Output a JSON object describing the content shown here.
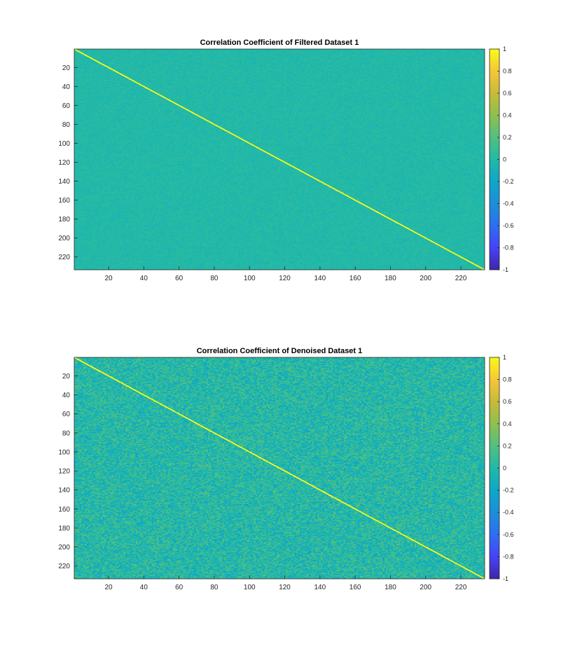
{
  "chart_data": [
    {
      "type": "heatmap",
      "title": "Correlation Coefficient of Filtered Dataset 1",
      "matrix_size": 233,
      "background_value": 0.0,
      "diagonal_value": 1,
      "noise_amplitude": 0.06,
      "xlim": [
        0.5,
        233.5
      ],
      "ylim": [
        0.5,
        233.5
      ],
      "y_reversed": true,
      "x_ticks": [
        20,
        40,
        60,
        80,
        100,
        120,
        140,
        160,
        180,
        200,
        220
      ],
      "y_ticks": [
        20,
        40,
        60,
        80,
        100,
        120,
        140,
        160,
        180,
        200,
        220
      ],
      "colorbar": {
        "min": -1,
        "max": 1,
        "ticks": [
          -1,
          -0.8,
          -0.6,
          -0.4,
          -0.2,
          0,
          0.2,
          0.4,
          0.6,
          0.8,
          1
        ],
        "colormap": "parula"
      }
    },
    {
      "type": "heatmap",
      "title": "Correlation Coefficient of Denoised Dataset 1",
      "matrix_size": 233,
      "background_value": 0.0,
      "diagonal_value": 1,
      "noise_amplitude": 0.22,
      "xlim": [
        0.5,
        233.5
      ],
      "ylim": [
        0.5,
        233.5
      ],
      "y_reversed": true,
      "x_ticks": [
        20,
        40,
        60,
        80,
        100,
        120,
        140,
        160,
        180,
        200,
        220
      ],
      "y_ticks": [
        20,
        40,
        60,
        80,
        100,
        120,
        140,
        160,
        180,
        200,
        220
      ],
      "colorbar": {
        "min": -1,
        "max": 1,
        "ticks": [
          -1,
          -0.8,
          -0.6,
          -0.4,
          -0.2,
          0,
          0.2,
          0.4,
          0.6,
          0.8,
          1
        ],
        "colormap": "parula"
      }
    }
  ],
  "colors": {
    "parula": [
      "#3e26a8",
      "#4743f6",
      "#2d6ff2",
      "#1c8fd8",
      "#0ea7c7",
      "#21b9a8",
      "#51c07f",
      "#8ec04e",
      "#c7bb38",
      "#f6c63a",
      "#f9fb15"
    ]
  }
}
